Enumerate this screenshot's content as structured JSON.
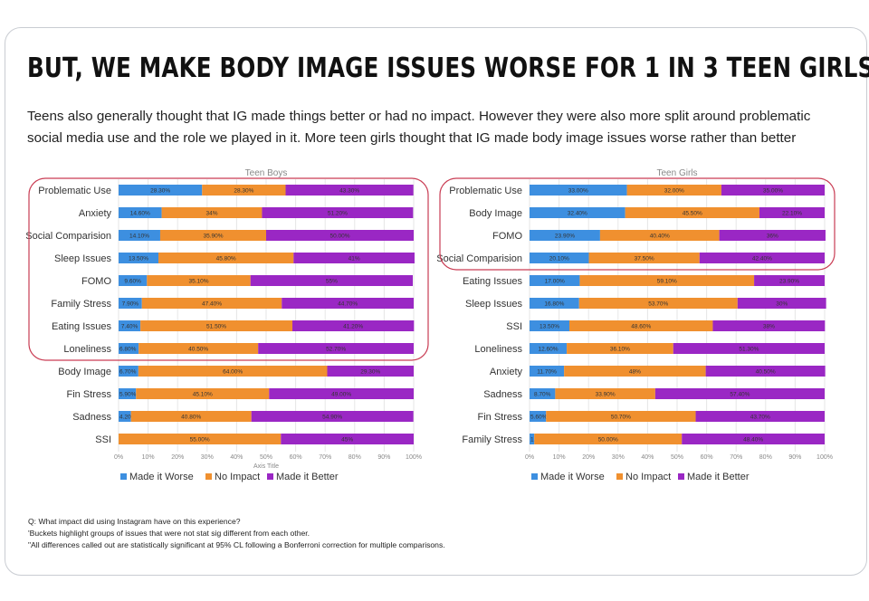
{
  "page": {
    "title": "BUT, WE MAKE BODY IMAGE ISSUES WORSE FOR 1 IN 3 TEEN GIRLS",
    "subtitle": "Teens also generally thought that IG made things better or had no impact. However they were also more split around problematic social media use and the role we played in it. More teen girls thought that IG made body image issues worse rather than better",
    "footnotes": [
      "Q: What impact did using Instagram have on this experience?",
      "'Buckets highlight groups of issues that were not stat sig different from each other.",
      "\"All differences called out are statistically significant at 95% CL following a Bonferroni correction for multiple comparisons."
    ],
    "colors": {
      "worse": "#3d8fe0",
      "no_impact": "#f0902f",
      "better": "#9a27c4",
      "highlight_box": "#c93c53",
      "grid": "#e6e6e6"
    }
  },
  "chart_data": [
    {
      "type": "bar",
      "orientation": "horizontal-stacked",
      "title": "Teen Boys",
      "xlabel": "Axis Title",
      "xlim": [
        0,
        100
      ],
      "x_ticks": [
        "0%",
        "10%",
        "20%",
        "30%",
        "40%",
        "50%",
        "60%",
        "70%",
        "80%",
        "90%",
        "100%"
      ],
      "legend_position": "bottom",
      "categories": [
        "Problematic Use",
        "Anxiety",
        "Social Comparision",
        "Sleep Issues",
        "FOMO",
        "Family Stress",
        "Eating Issues",
        "Loneliness",
        "Body Image",
        "Fin Stress",
        "Sadness",
        "SSI"
      ],
      "series": [
        {
          "name": "Made it Worse",
          "values": [
            28.3,
            14.6,
            14.1,
            13.5,
            9.6,
            7.9,
            7.4,
            6.8,
            6.7,
            5.9,
            4.2,
            0
          ],
          "labels": [
            "28.30%",
            "14.60%",
            "14.10%",
            "13.50%",
            "9.60%",
            "7.90%",
            "7.40%",
            "6.80%",
            "6.70%",
            "5.90%",
            "4.20%",
            "0.00%"
          ]
        },
        {
          "name": "No Impact",
          "values": [
            28.3,
            34,
            35.9,
            45.8,
            35.1,
            47.4,
            51.5,
            40.5,
            64,
            45.1,
            40.8,
            55
          ],
          "labels": [
            "28.30%",
            "34%",
            "35.90%",
            "45.80%",
            "35.10%",
            "47.40%",
            "51.50%",
            "40.50%",
            "64.00%",
            "45.10%",
            "40.80%",
            "55.00%"
          ]
        },
        {
          "name": "Made it Better",
          "values": [
            43.3,
            51.2,
            50,
            41,
            55,
            44.7,
            41.2,
            52.7,
            29.3,
            49,
            54.9,
            45
          ],
          "labels": [
            "43.30%",
            "51.20%",
            "50.00%",
            "41%",
            "55%",
            "44.70%",
            "41.20%",
            "52.70%",
            "29.30%",
            "49.00%",
            "54.90%",
            "45%"
          ]
        }
      ],
      "highlight_group": [
        "Problematic Use",
        "Anxiety",
        "Social Comparision",
        "Sleep Issues",
        "FOMO",
        "Family Stress",
        "Eating Issues",
        "Loneliness"
      ]
    },
    {
      "type": "bar",
      "orientation": "horizontal-stacked",
      "title": "Teen Girls",
      "xlabel": "",
      "xlim": [
        0,
        100
      ],
      "x_ticks": [
        "0%",
        "10%",
        "20%",
        "30%",
        "40%",
        "50%",
        "60%",
        "70%",
        "80%",
        "90%",
        "100%"
      ],
      "legend_position": "bottom",
      "categories": [
        "Problematic Use",
        "Body Image",
        "FOMO",
        "Social Comparision",
        "Eating Issues",
        "Sleep Issues",
        "SSI",
        "Loneliness",
        "Anxiety",
        "Sadness",
        "Fin Stress",
        "Family Stress"
      ],
      "series": [
        {
          "name": "Made it Worse",
          "values": [
            33,
            32.4,
            23.9,
            20.1,
            17,
            16.8,
            13.5,
            12.6,
            11.7,
            8.7,
            5.6,
            1.6
          ],
          "labels": [
            "33.00%",
            "32.40%",
            "23.90%",
            "20.10%",
            "17.00%",
            "16.80%",
            "13.50%",
            "12.60%",
            "11.70%",
            "8.70%",
            "5.60%",
            "1.60%"
          ]
        },
        {
          "name": "No Impact",
          "values": [
            32,
            45.5,
            40.4,
            37.5,
            59.1,
            53.7,
            48.6,
            36.1,
            48,
            33.9,
            50.7,
            50
          ],
          "labels": [
            "32.00%",
            "45.50%",
            "40.40%",
            "37.50%",
            "59.10%",
            "53.70%",
            "48.60%",
            "36.10%",
            "48%",
            "33.90%",
            "50.70%",
            "50.00%"
          ]
        },
        {
          "name": "Made it Better",
          "values": [
            35,
            22.1,
            36,
            42.4,
            23.9,
            30,
            38,
            51.3,
            40.5,
            57.4,
            43.7,
            48.4
          ],
          "labels": [
            "35.00%",
            "22.10%",
            "36%",
            "42.40%",
            "23.90%",
            "30%",
            "38%",
            "51.30%",
            "40.50%",
            "57.40%",
            "43.70%",
            "48.40%"
          ]
        }
      ],
      "highlight_group": [
        "Problematic Use",
        "Body Image",
        "FOMO",
        "Social Comparision"
      ]
    }
  ]
}
